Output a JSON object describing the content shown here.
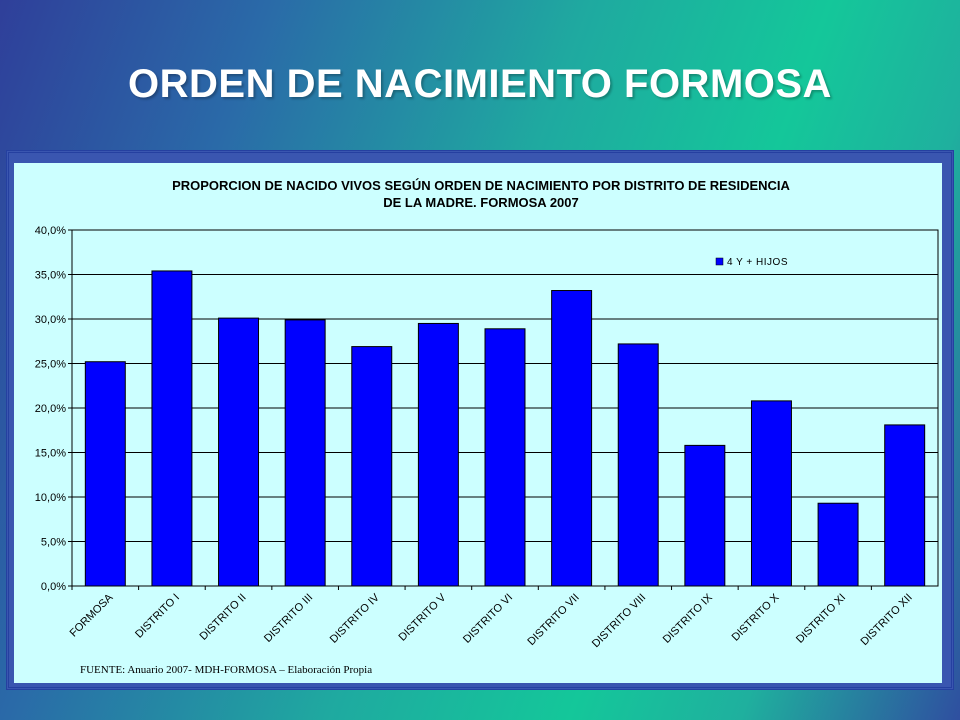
{
  "slide_title": "ORDEN DE NACIMIENTO  FORMOSA",
  "source_note": "FUENTE: Anuario 2007- MDH-FORMOSA – Elaboración Propia",
  "colors": {
    "bar": "#0000ff",
    "plot_bg": "#ccffff",
    "title_text": "#ffffff"
  },
  "chart_data": {
    "type": "bar",
    "title_lines": [
      "PROPORCION DE NACIDO VIVOS SEGÚN ORDEN DE NACIMIENTO POR DISTRITO DE RESIDENCIA",
      "DE LA MADRE. FORMOSA 2007"
    ],
    "categories": [
      "FORMOSA",
      "DISTRITO I",
      "DISTRITO II",
      "DISTRITO III",
      "DISTRITO IV",
      "DISTRITO V",
      "DISTRITO VI",
      "DISTRITO VII",
      "DISTRITO VIII",
      "DISTRITO IX",
      "DISTRITO X",
      "DISTRITO XI",
      "DISTRITO XII"
    ],
    "series": [
      {
        "name": "4 Y + HIJOS",
        "values": [
          25.2,
          35.4,
          30.1,
          29.9,
          26.9,
          29.5,
          28.9,
          33.2,
          27.2,
          15.8,
          20.8,
          9.3,
          18.1
        ]
      }
    ],
    "ylim": [
      0,
      40
    ],
    "yticks": [
      "0,0%",
      "5,0%",
      "10,0%",
      "15,0%",
      "20,0%",
      "25,0%",
      "30,0%",
      "35,0%",
      "40,0%"
    ],
    "grid": true,
    "legend_position": "top-right"
  }
}
